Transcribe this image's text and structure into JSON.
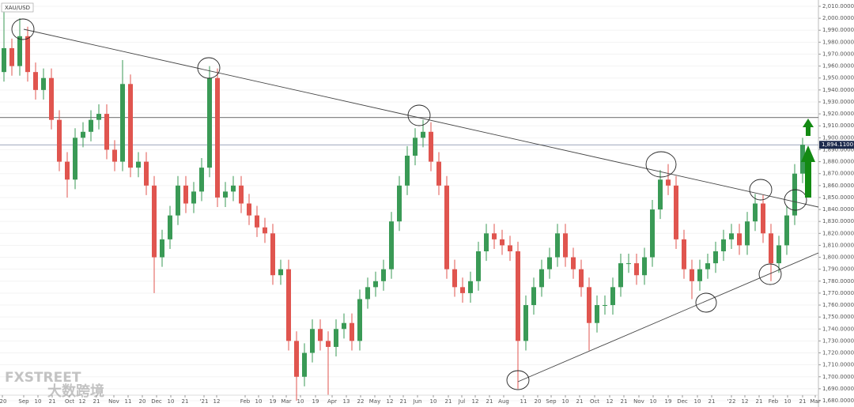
{
  "chart_data": {
    "type": "candlestick",
    "title": "XAU/USD",
    "x": [
      0,
      1,
      2,
      3,
      4,
      5,
      6,
      7,
      8,
      9,
      10,
      11,
      12,
      13,
      14,
      15,
      16,
      17,
      18,
      19,
      20,
      21,
      22,
      23,
      24,
      25,
      26,
      27,
      28,
      29,
      30,
      31,
      32,
      33,
      34,
      35,
      36,
      37,
      38,
      39,
      40,
      41,
      42,
      43,
      44,
      45,
      46,
      47,
      48,
      49,
      50,
      51,
      52,
      53,
      54,
      55,
      56,
      57,
      58,
      59,
      60,
      61,
      62,
      63,
      64,
      65,
      66,
      67,
      68,
      69,
      70,
      71,
      72,
      73,
      74,
      75,
      76,
      77,
      78,
      79,
      80,
      81,
      82,
      83,
      84,
      85,
      86,
      87,
      88,
      89,
      90,
      91,
      92,
      93,
      94,
      95,
      96,
      97,
      98,
      99,
      100,
      101
    ],
    "open": [
      1955,
      1975,
      1960,
      1985,
      1955,
      1940,
      1950,
      1915,
      1880,
      1865,
      1900,
      1905,
      1915,
      1920,
      1890,
      1880,
      1945,
      1875,
      1880,
      1860,
      1800,
      1815,
      1835,
      1860,
      1845,
      1855,
      1875,
      1950,
      1850,
      1855,
      1860,
      1845,
      1835,
      1825,
      1820,
      1785,
      1790,
      1730,
      1700,
      1720,
      1740,
      1730,
      1725,
      1740,
      1745,
      1730,
      1765,
      1775,
      1780,
      1790,
      1830,
      1860,
      1885,
      1900,
      1905,
      1880,
      1860,
      1790,
      1775,
      1770,
      1780,
      1805,
      1820,
      1815,
      1810,
      1805,
      1730,
      1760,
      1775,
      1790,
      1800,
      1820,
      1800,
      1790,
      1775,
      1745,
      1760,
      1760,
      1775,
      1795,
      1795,
      1785,
      1800,
      1840,
      1865,
      1860,
      1815,
      1790,
      1780,
      1790,
      1795,
      1805,
      1815,
      1820,
      1810,
      1830,
      1845,
      1820,
      1795,
      1810,
      1835,
      1870
    ],
    "high": [
      2005,
      1983,
      2000,
      1993,
      1963,
      1958,
      1958,
      1923,
      1888,
      1908,
      1913,
      1923,
      1928,
      1928,
      1898,
      1965,
      1953,
      1888,
      1888,
      1868,
      1823,
      1843,
      1868,
      1868,
      1863,
      1883,
      1960,
      1958,
      1863,
      1868,
      1868,
      1853,
      1843,
      1833,
      1828,
      1798,
      1798,
      1738,
      1728,
      1748,
      1748,
      1738,
      1748,
      1753,
      1753,
      1773,
      1783,
      1788,
      1798,
      1838,
      1868,
      1893,
      1908,
      1915,
      1913,
      1888,
      1868,
      1798,
      1783,
      1788,
      1813,
      1828,
      1828,
      1823,
      1818,
      1813,
      1768,
      1783,
      1798,
      1808,
      1828,
      1828,
      1808,
      1798,
      1783,
      1768,
      1768,
      1783,
      1803,
      1803,
      1803,
      1808,
      1848,
      1873,
      1878,
      1868,
      1823,
      1798,
      1798,
      1803,
      1813,
      1823,
      1828,
      1828,
      1838,
      1853,
      1852,
      1828,
      1818,
      1843,
      1878,
      1900
    ],
    "low": [
      1947,
      1952,
      1952,
      1947,
      1932,
      1932,
      1907,
      1872,
      1850,
      1857,
      1892,
      1897,
      1907,
      1882,
      1872,
      1872,
      1867,
      1867,
      1852,
      1770,
      1792,
      1807,
      1827,
      1837,
      1837,
      1847,
      1867,
      1842,
      1842,
      1847,
      1837,
      1827,
      1817,
      1812,
      1777,
      1777,
      1722,
      1680,
      1692,
      1712,
      1722,
      1685,
      1717,
      1732,
      1722,
      1722,
      1757,
      1767,
      1772,
      1782,
      1822,
      1852,
      1877,
      1892,
      1872,
      1852,
      1782,
      1767,
      1762,
      1762,
      1772,
      1797,
      1807,
      1802,
      1797,
      1690,
      1722,
      1752,
      1767,
      1782,
      1792,
      1792,
      1782,
      1767,
      1722,
      1737,
      1752,
      1752,
      1767,
      1787,
      1777,
      1777,
      1792,
      1832,
      1852,
      1807,
      1782,
      1765,
      1772,
      1782,
      1787,
      1797,
      1807,
      1802,
      1802,
      1822,
      1812,
      1780,
      1787,
      1802,
      1827,
      1862
    ],
    "close": [
      1975,
      1960,
      1985,
      1955,
      1940,
      1950,
      1915,
      1880,
      1865,
      1900,
      1905,
      1915,
      1920,
      1890,
      1880,
      1945,
      1875,
      1880,
      1860,
      1800,
      1815,
      1835,
      1860,
      1845,
      1855,
      1875,
      1950,
      1850,
      1855,
      1860,
      1845,
      1835,
      1825,
      1820,
      1785,
      1790,
      1730,
      1700,
      1720,
      1740,
      1730,
      1725,
      1740,
      1745,
      1730,
      1765,
      1775,
      1780,
      1790,
      1830,
      1860,
      1885,
      1900,
      1905,
      1880,
      1860,
      1790,
      1775,
      1770,
      1780,
      1805,
      1820,
      1815,
      1810,
      1805,
      1730,
      1760,
      1775,
      1790,
      1800,
      1820,
      1800,
      1790,
      1775,
      1745,
      1760,
      1760,
      1775,
      1795,
      1795,
      1785,
      1800,
      1840,
      1865,
      1860,
      1815,
      1790,
      1780,
      1790,
      1795,
      1805,
      1815,
      1820,
      1810,
      1830,
      1845,
      1820,
      1795,
      1810,
      1835,
      1870,
      1894.11
    ],
    "up_color": "#3a9a56",
    "down_color": "#e0554f",
    "xlim": [
      -0.5,
      103
    ],
    "xticks": [
      {
        "value": -0.2,
        "label": "'20"
      },
      {
        "value": 2.5,
        "label": "Sep"
      },
      {
        "value": 4.3,
        "label": "10"
      },
      {
        "value": 6.1,
        "label": "21"
      },
      {
        "value": 8.3,
        "label": "Oct"
      },
      {
        "value": 9.9,
        "label": "12"
      },
      {
        "value": 11.7,
        "label": "21"
      },
      {
        "value": 13.9,
        "label": "Nov"
      },
      {
        "value": 15.7,
        "label": "11"
      },
      {
        "value": 17.5,
        "label": "20"
      },
      {
        "value": 19.3,
        "label": "Dec"
      },
      {
        "value": 21.1,
        "label": "10"
      },
      {
        "value": 22.9,
        "label": "21"
      },
      {
        "value": 25.3,
        "label": "'21"
      },
      {
        "value": 26.9,
        "label": "12"
      },
      {
        "value": 30.5,
        "label": "Feb"
      },
      {
        "value": 32.2,
        "label": "10"
      },
      {
        "value": 34,
        "label": "19"
      },
      {
        "value": 35.7,
        "label": "Mar"
      },
      {
        "value": 37.5,
        "label": "10"
      },
      {
        "value": 39.4,
        "label": "19"
      },
      {
        "value": 41.5,
        "label": "Apr"
      },
      {
        "value": 43.3,
        "label": "13"
      },
      {
        "value": 45.1,
        "label": "22"
      },
      {
        "value": 46.9,
        "label": "May"
      },
      {
        "value": 48.8,
        "label": "12"
      },
      {
        "value": 50.5,
        "label": "21"
      },
      {
        "value": 52.3,
        "label": "Jun"
      },
      {
        "value": 54.3,
        "label": "10"
      },
      {
        "value": 56.2,
        "label": "21"
      },
      {
        "value": 57.9,
        "label": "Jul"
      },
      {
        "value": 59.6,
        "label": "12"
      },
      {
        "value": 61.4,
        "label": "21"
      },
      {
        "value": 63.2,
        "label": "Aug"
      },
      {
        "value": 65.7,
        "label": "11"
      },
      {
        "value": 67.5,
        "label": "20"
      },
      {
        "value": 69.2,
        "label": "Sep"
      },
      {
        "value": 71,
        "label": "10"
      },
      {
        "value": 72.8,
        "label": "21"
      },
      {
        "value": 74.7,
        "label": "Oct"
      },
      {
        "value": 76.6,
        "label": "12"
      },
      {
        "value": 78.4,
        "label": "21"
      },
      {
        "value": 80.3,
        "label": "Nov"
      },
      {
        "value": 82.1,
        "label": "10"
      },
      {
        "value": 84,
        "label": "19"
      },
      {
        "value": 85.8,
        "label": "Dec"
      },
      {
        "value": 87.7,
        "label": "10"
      },
      {
        "value": 89.5,
        "label": "21"
      },
      {
        "value": 92,
        "label": "'22"
      },
      {
        "value": 93.7,
        "label": "12"
      },
      {
        "value": 95.5,
        "label": "21"
      },
      {
        "value": 97.3,
        "label": "Feb"
      },
      {
        "value": 99.1,
        "label": "10"
      },
      {
        "value": 101,
        "label": "21"
      },
      {
        "value": 102.6,
        "label": "Mar"
      }
    ],
    "ylim": [
      1680,
      2010
    ],
    "yticks": [
      {
        "value": 1680,
        "label": "1,680.0000"
      },
      {
        "value": 1690,
        "label": "1,690.0000"
      },
      {
        "value": 1700,
        "label": "1,700.0000"
      },
      {
        "value": 1710,
        "label": "1,710.0000"
      },
      {
        "value": 1720,
        "label": "1,720.0000"
      },
      {
        "value": 1730,
        "label": "1,730.0000"
      },
      {
        "value": 1740,
        "label": "1,740.0000"
      },
      {
        "value": 1750,
        "label": "1,750.0000"
      },
      {
        "value": 1760,
        "label": "1,760.0000"
      },
      {
        "value": 1770,
        "label": "1,770.0000"
      },
      {
        "value": 1780,
        "label": "1,780.0000"
      },
      {
        "value": 1790,
        "label": "1,790.0000"
      },
      {
        "value": 1800,
        "label": "1,800.0000"
      },
      {
        "value": 1810,
        "label": "1,810.0000"
      },
      {
        "value": 1820,
        "label": "1,820.0000"
      },
      {
        "value": 1830,
        "label": "1,830.0000"
      },
      {
        "value": 1840,
        "label": "1,840.0000"
      },
      {
        "value": 1850,
        "label": "1,850.0000"
      },
      {
        "value": 1860,
        "label": "1,860.0000"
      },
      {
        "value": 1870,
        "label": "1,870.0000"
      },
      {
        "value": 1880,
        "label": "1,880.0000"
      },
      {
        "value": 1890,
        "label": "1,890.0000"
      },
      {
        "value": 1900,
        "label": "1,900.0000"
      },
      {
        "value": 1910,
        "label": "1,910.0000"
      },
      {
        "value": 1920,
        "label": "1,920.0000"
      },
      {
        "value": 1930,
        "label": "1,930.0000"
      },
      {
        "value": 1940,
        "label": "1,940.0000"
      },
      {
        "value": 1950,
        "label": "1,950.0000"
      },
      {
        "value": 1960,
        "label": "1,960.0000"
      },
      {
        "value": 1970,
        "label": "1,970.0000"
      },
      {
        "value": 1980,
        "label": "1,980.0000"
      },
      {
        "value": 1990,
        "label": "1,990.0000"
      },
      {
        "value": 2000,
        "label": "2,000.0000"
      },
      {
        "value": 2010,
        "label": "2,010.0000"
      }
    ],
    "hlines": [
      1917
    ],
    "last_price": {
      "value": 1894.11,
      "label": "1,894.1100"
    },
    "watermark": [
      "FXSTREET",
      "大数跨境"
    ]
  }
}
